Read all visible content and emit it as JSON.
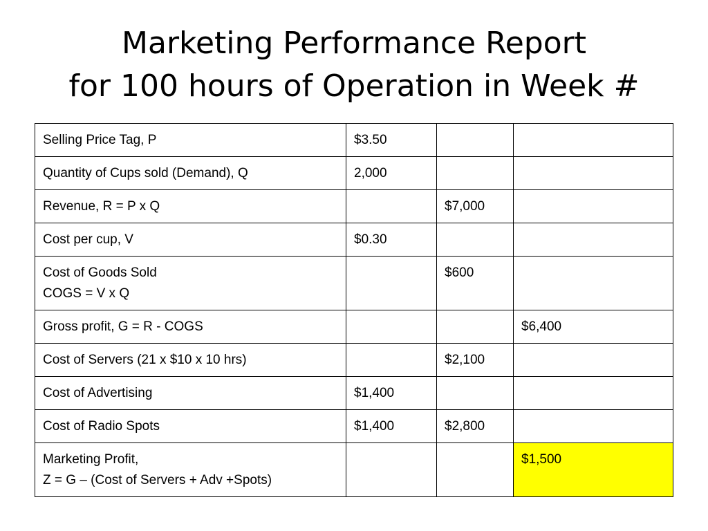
{
  "slide": {
    "title_line1": "Marketing Performance Report",
    "title_line2": "for 100 hours of Operation in Week #"
  },
  "table": {
    "rows": [
      {
        "label": [
          "Selling Price Tag, P"
        ],
        "c1": "$3.50",
        "c2": "",
        "c3": ""
      },
      {
        "label": [
          "Quantity of Cups sold (Demand), Q"
        ],
        "c1": "2,000",
        "c2": "",
        "c3": ""
      },
      {
        "label": [
          "Revenue, R = P  x Q"
        ],
        "c1": "",
        "c2": "$7,000",
        "c3": ""
      },
      {
        "label": [
          "Cost per cup, V"
        ],
        "c1": "$0.30",
        "c2": "",
        "c3": ""
      },
      {
        "label": [
          "Cost of Goods Sold",
          "COGS = V x Q"
        ],
        "c1": "",
        "c2": "$600",
        "c3": ""
      },
      {
        "label": [
          "Gross profit, G = R - COGS"
        ],
        "c1": "",
        "c2": "",
        "c3": "$6,400"
      },
      {
        "label": [
          "Cost of Servers (21 x $10 x 10 hrs)"
        ],
        "c1": "",
        "c2": "$2,100",
        "c3": ""
      },
      {
        "label": [
          "Cost of Advertising"
        ],
        "c1": "$1,400",
        "c2": "",
        "c3": ""
      },
      {
        "label": [
          "Cost of Radio Spots"
        ],
        "c1": "$1,400",
        "c2": "$2,800",
        "c3": ""
      },
      {
        "label": [
          "Marketing Profit,",
          "Z = G – (Cost of Servers + Adv +Spots)"
        ],
        "c1": "",
        "c2": "",
        "c3": "$1,500"
      }
    ]
  },
  "colors": {
    "highlight": "#ffff00",
    "border": "#000000",
    "background": "#ffffff"
  }
}
